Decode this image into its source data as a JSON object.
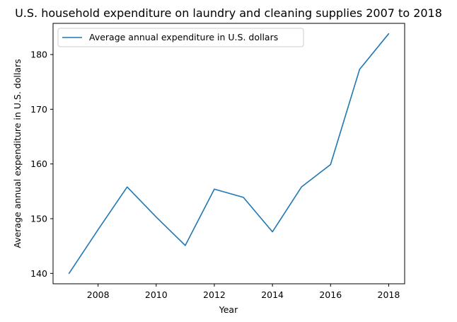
{
  "chart_data": {
    "type": "line",
    "title": "U.S. household expenditure on laundry and cleaning supplies 2007 to 2018",
    "xlabel": "Year",
    "ylabel": "Average annual expenditure in U.S. dollars",
    "x": [
      2007,
      2008,
      2009,
      2010,
      2011,
      2012,
      2013,
      2014,
      2015,
      2016,
      2017,
      2018
    ],
    "series": [
      {
        "name": "Average annual expenditure in U.S. dollars",
        "values": [
          140.0,
          148.0,
          155.8,
          150.3,
          145.1,
          155.4,
          153.9,
          147.6,
          155.8,
          159.9,
          177.3,
          183.8
        ],
        "color": "#1f77b4"
      }
    ],
    "xlim": [
      2006.45,
      2018.55
    ],
    "ylim": [
      138.1,
      185.7
    ],
    "xticks": [
      2008,
      2010,
      2012,
      2014,
      2016,
      2018
    ],
    "yticks": [
      140,
      150,
      160,
      170,
      180
    ],
    "grid": false,
    "legend_position": "top-left"
  }
}
